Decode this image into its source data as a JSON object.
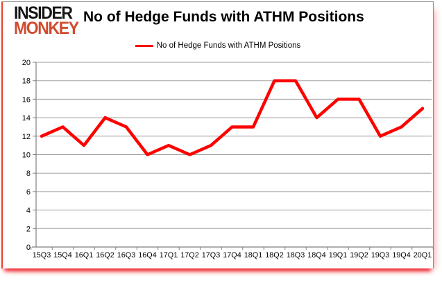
{
  "header": {
    "logo_line1": "INSIDER",
    "logo_line2": "MONKEY",
    "title": "No of Hedge Funds with ATHM Positions"
  },
  "legend": {
    "label": "No of Hedge Funds with ATHM Positions"
  },
  "colors": {
    "series": "#ff0000",
    "grid": "#9d9d9d",
    "axis": "#7f7f7f",
    "text": "#000000",
    "logo_accent": "#d14a2e",
    "frame_left_border": "#e8402a",
    "bottom_shadow": "#ed1c24",
    "right_glow": "#f4b7b4"
  },
  "chart_data": {
    "type": "line",
    "title": "No of Hedge Funds with ATHM Positions",
    "categories": [
      "15Q3",
      "15Q4",
      "16Q1",
      "16Q2",
      "16Q3",
      "16Q4",
      "17Q1",
      "17Q2",
      "17Q3",
      "17Q4",
      "18Q1",
      "18Q2",
      "18Q3",
      "18Q4",
      "19Q1",
      "19Q2",
      "19Q3",
      "19Q4",
      "20Q1"
    ],
    "series": [
      {
        "name": "No of Hedge Funds with ATHM Positions",
        "color": "#ff0000",
        "values": [
          12,
          13,
          11,
          14,
          13,
          10,
          11,
          10,
          11,
          13,
          13,
          18,
          18,
          14,
          16,
          16,
          12,
          13,
          15
        ]
      }
    ],
    "xlabel": "",
    "ylabel": "",
    "ylim": [
      0,
      20
    ],
    "ytick_step": 2,
    "grid": "horizontal",
    "legend_position": "top-center"
  }
}
